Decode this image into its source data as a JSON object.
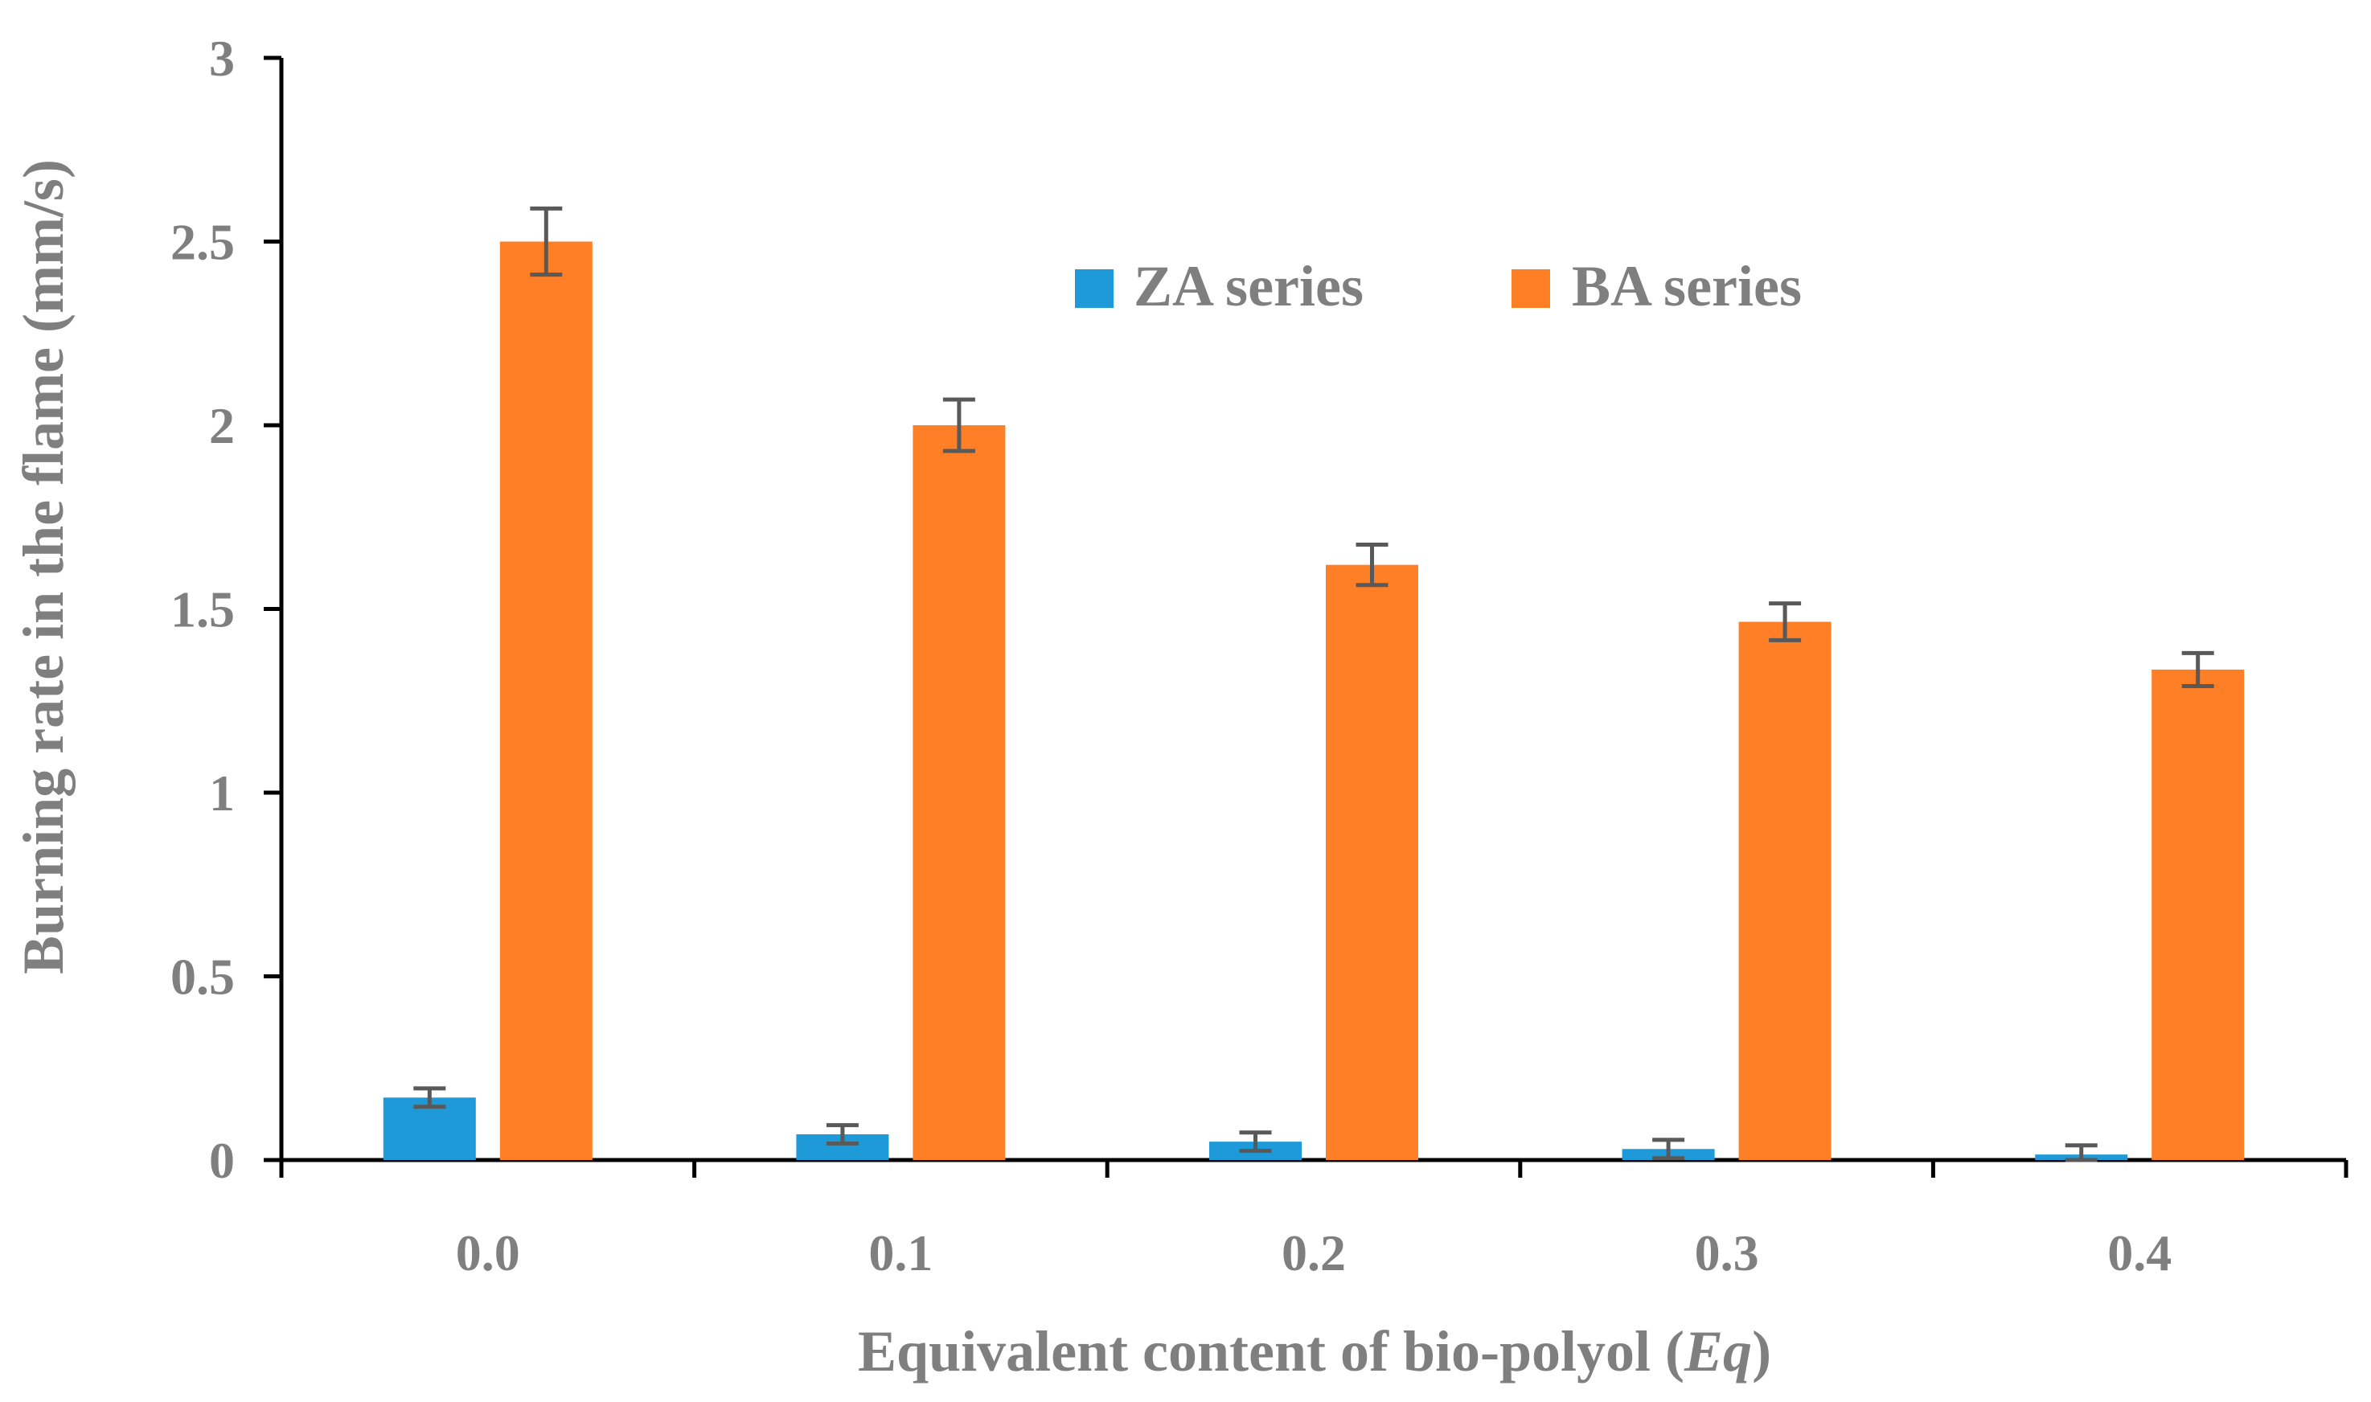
{
  "chart_data": {
    "type": "bar",
    "categories": [
      "0.0",
      "0.1",
      "0.2",
      "0.3",
      "0.4"
    ],
    "series": [
      {
        "name": "ZA series",
        "color": "#1f9ad9",
        "values": [
          0.17,
          0.07,
          0.05,
          0.03,
          0.015
        ],
        "errors": [
          0.025,
          0.025,
          0.025,
          0.025,
          0.025
        ]
      },
      {
        "name": "BA series",
        "color": "#ff7f27",
        "values": [
          2.5,
          2.0,
          1.62,
          1.465,
          1.335
        ],
        "errors": [
          0.09,
          0.07,
          0.055,
          0.05,
          0.045
        ]
      }
    ],
    "ylim": [
      0,
      3
    ],
    "yticks": [
      "0",
      "0.5",
      "1",
      "1.5",
      "2",
      "2.5",
      "3"
    ],
    "ylabel": "Burning rate in the flame (mm/s)",
    "xlabel_main": "Equivalent content of bio-polyol (",
    "xlabel_italic": "Eq",
    "xlabel_end": ")",
    "legend_position": "top-center"
  },
  "colors": {
    "axis": "#000000",
    "text": "#7f7f7f",
    "errorbar": "#595959"
  }
}
